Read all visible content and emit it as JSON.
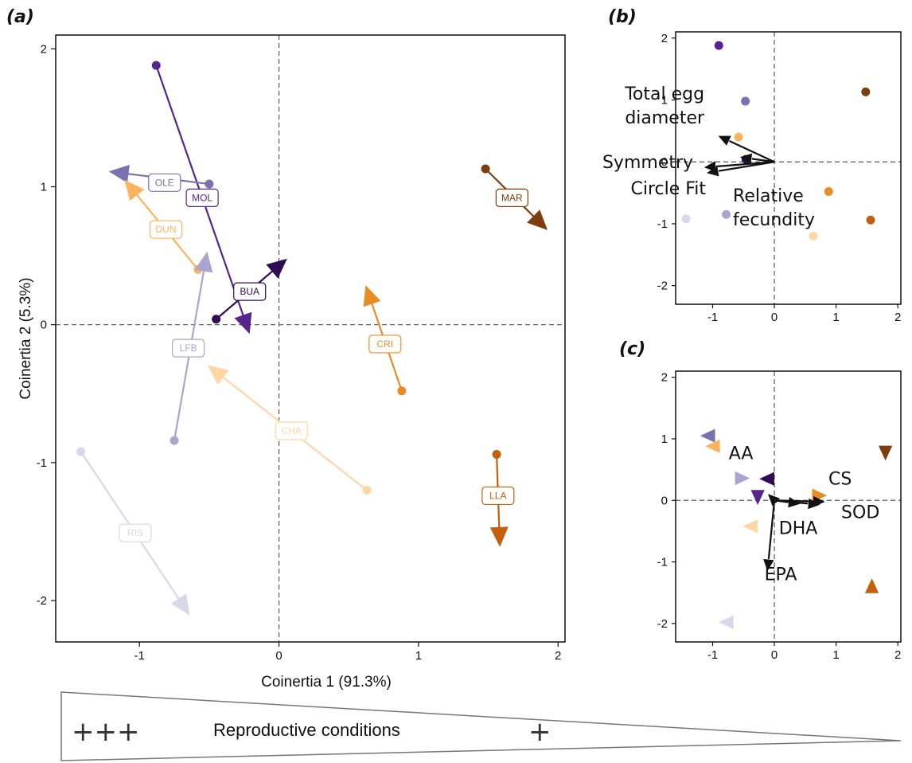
{
  "colors": {
    "BUA": "#2e0b53",
    "MOL": "#55248d",
    "OLE": "#7a72ad",
    "LFB": "#aaa5cf",
    "RIS": "#d9d8ea",
    "CHA": "#fed7a4",
    "DUN": "#fbb45d",
    "CRI": "#e88d26",
    "LLA": "#c2600b",
    "MAR": "#7e3d0c"
  },
  "chart_data": [
    {
      "id": "a",
      "panel_label": "(a)",
      "type": "scatter",
      "xlabel": "Coinertia 1 (91.3%)",
      "ylabel": "Coinertia 2 (5.3%)",
      "xlim": [
        -1.6,
        2.05
      ],
      "ylim": [
        -2.3,
        2.1
      ],
      "xticks": [
        -1,
        0,
        1,
        2
      ],
      "xtick_labels": [
        "-1",
        "0",
        "1",
        "2"
      ],
      "yticks": [
        -2,
        -1,
        0,
        1,
        2
      ],
      "ytick_labels": [
        "-2",
        "-1",
        "0",
        "1",
        "2"
      ],
      "reference_lines": {
        "x": 0,
        "y": 0,
        "style": "dashed"
      },
      "series": [
        {
          "name": "MOL",
          "circle": [
            -0.88,
            1.88
          ],
          "triangle": [
            -0.24,
            0.02
          ],
          "label_at": [
            -0.55,
            0.92
          ]
        },
        {
          "name": "OLE",
          "circle": [
            -0.5,
            1.02
          ],
          "triangle": [
            -1.13,
            1.1
          ],
          "label_at": [
            -0.82,
            1.03
          ]
        },
        {
          "name": "DUN",
          "circle": [
            -0.58,
            0.4
          ],
          "triangle": [
            -1.05,
            0.98
          ],
          "label_at": [
            -0.81,
            0.69
          ]
        },
        {
          "name": "BUA",
          "circle": [
            -0.45,
            0.04
          ],
          "triangle": [
            -0.01,
            0.42
          ],
          "label_at": [
            -0.21,
            0.24
          ]
        },
        {
          "name": "LFB",
          "circle": [
            -0.75,
            -0.84
          ],
          "triangle": [
            -0.53,
            0.44
          ],
          "label_at": [
            -0.65,
            -0.17
          ]
        },
        {
          "name": "RIS",
          "circle": [
            -1.42,
            -0.92
          ],
          "triangle": [
            -0.69,
            -2.03
          ],
          "label_at": [
            -1.03,
            -1.51
          ]
        },
        {
          "name": "CHA",
          "circle": [
            0.63,
            -1.2
          ],
          "triangle": [
            -0.44,
            -0.35
          ],
          "label_at": [
            0.09,
            -0.77
          ]
        },
        {
          "name": "CRI",
          "circle": [
            0.88,
            -0.48
          ],
          "triangle": [
            0.65,
            0.2
          ],
          "label_at": [
            0.76,
            -0.14
          ]
        },
        {
          "name": "LLA",
          "circle": [
            1.56,
            -0.94
          ],
          "triangle": [
            1.58,
            -1.52
          ],
          "label_at": [
            1.57,
            -1.24
          ]
        },
        {
          "name": "MAR",
          "circle": [
            1.48,
            1.13
          ],
          "triangle": [
            1.86,
            0.75
          ],
          "label_at": [
            1.67,
            0.92
          ]
        }
      ]
    },
    {
      "id": "b",
      "panel_label": "(b)",
      "type": "scatter",
      "xlim": [
        -1.6,
        2.05
      ],
      "ylim": [
        -2.3,
        2.1
      ],
      "xticks": [
        -1,
        0,
        1,
        2
      ],
      "xtick_labels": [
        "-1",
        "0",
        "1",
        "2"
      ],
      "yticks": [
        -2,
        -1,
        0,
        1,
        2
      ],
      "ytick_labels": [
        "-2",
        "-1",
        "0",
        "1",
        "2"
      ],
      "reference_lines": {
        "x": 0,
        "y": 0,
        "style": "dashed"
      },
      "points": [
        {
          "name": "MOL",
          "x": -0.9,
          "y": 1.88
        },
        {
          "name": "OLE",
          "x": -0.47,
          "y": 0.98
        },
        {
          "name": "MAR",
          "x": 1.48,
          "y": 1.13
        },
        {
          "name": "DUN",
          "x": -0.58,
          "y": 0.4
        },
        {
          "name": "BUA",
          "x": -0.46,
          "y": 0.04
        },
        {
          "name": "CRI",
          "x": 0.88,
          "y": -0.48
        },
        {
          "name": "RIS",
          "x": -1.43,
          "y": -0.92
        },
        {
          "name": "LFB",
          "x": -0.78,
          "y": -0.85
        },
        {
          "name": "LLA",
          "x": 1.56,
          "y": -0.94
        },
        {
          "name": "CHA",
          "x": 0.63,
          "y": -1.2
        }
      ],
      "vectors": [
        {
          "label": "Total egg diameter",
          "x": -0.8,
          "y": 0.37
        },
        {
          "label": "Symmetry",
          "x": -1.02,
          "y": -0.08
        },
        {
          "label": "Circle Fit",
          "x": -0.98,
          "y": -0.16
        },
        {
          "label": "Relative fecundity",
          "x": -0.44,
          "y": 0.06
        }
      ],
      "vector_labels": [
        {
          "lines": [
            "Total egg",
            "diameter"
          ],
          "anchor": "end"
        },
        {
          "lines": [
            "Symmetry"
          ],
          "anchor": "end"
        },
        {
          "lines": [
            "Circle Fit"
          ],
          "anchor": "end"
        },
        {
          "lines": [
            "Relative",
            "fecundity"
          ],
          "anchor": "start"
        }
      ]
    },
    {
      "id": "c",
      "panel_label": "(c)",
      "type": "scatter",
      "xlim": [
        -1.6,
        2.05
      ],
      "ylim": [
        -2.3,
        2.1
      ],
      "xticks": [
        -1,
        0,
        1,
        2
      ],
      "xtick_labels": [
        "-1",
        "0",
        "1",
        "2"
      ],
      "yticks": [
        -2,
        -1,
        0,
        1,
        2
      ],
      "ytick_labels": [
        "-2",
        "-1",
        "0",
        "1",
        "2"
      ],
      "reference_lines": {
        "x": 0,
        "y": 0,
        "style": "dashed"
      },
      "points": [
        {
          "name": "OLE",
          "x": -1.05,
          "y": 1.05,
          "dir": 1
        },
        {
          "name": "DUN",
          "x": -0.97,
          "y": 0.88,
          "dir": 1
        },
        {
          "name": "MAR",
          "x": 1.8,
          "y": 0.8,
          "dir": 2
        },
        {
          "name": "LFB",
          "x": -0.55,
          "y": 0.36,
          "dir": 0
        },
        {
          "name": "BUA",
          "x": -0.09,
          "y": 0.35,
          "dir": 1
        },
        {
          "name": "MOL",
          "x": -0.27,
          "y": 0.08,
          "dir": 2
        },
        {
          "name": "CRI",
          "x": 0.7,
          "y": 0.08,
          "dir": 0
        },
        {
          "name": "CHA",
          "x": -0.36,
          "y": -0.42,
          "dir": 1
        },
        {
          "name": "LLA",
          "x": 1.58,
          "y": -1.42,
          "dir": 3
        },
        {
          "name": "RIS",
          "x": -0.75,
          "y": -1.98,
          "dir": 1
        }
      ],
      "vectors": [
        {
          "label": "AA",
          "x": -0.02,
          "y": 0.02
        },
        {
          "label": "CS",
          "x": 0.7,
          "y": -0.02
        },
        {
          "label": "SOD",
          "x": 0.62,
          "y": -0.06
        },
        {
          "label": "DHA",
          "x": 0.3,
          "y": -0.04
        },
        {
          "label": "EPA",
          "x": -0.1,
          "y": -1.03
        }
      ],
      "vector_labels": [
        {
          "lines": [
            "AA"
          ],
          "anchor": "middle"
        },
        {
          "lines": [
            "CS"
          ],
          "anchor": "start"
        },
        {
          "lines": [
            "SOD"
          ],
          "anchor": "start"
        },
        {
          "lines": [
            "DHA"
          ],
          "anchor": "middle"
        },
        {
          "lines": [
            "EPA"
          ],
          "anchor": "middle"
        }
      ]
    }
  ],
  "legend": {
    "high_marker": "+++",
    "label": "Reproductive conditions",
    "low_marker": "+"
  }
}
